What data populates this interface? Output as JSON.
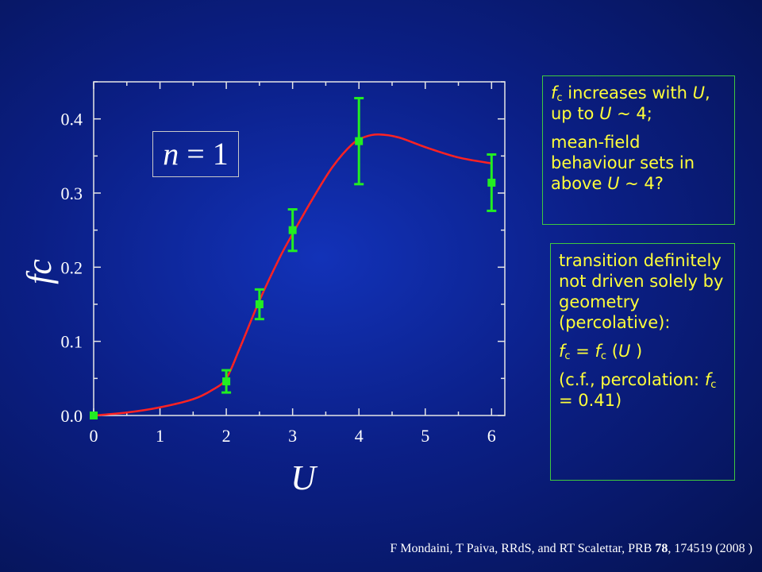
{
  "chart_data": {
    "type": "scatter",
    "xlabel": "U",
    "ylabel": "f",
    "ylabel_sub": "c",
    "xlim": [
      0,
      6.2
    ],
    "ylim": [
      0,
      0.45
    ],
    "xticks": [
      0,
      1,
      2,
      3,
      4,
      5,
      6
    ],
    "yticks": [
      0.0,
      0.1,
      0.2,
      0.3,
      0.4
    ],
    "ytick_labels": [
      "0.0",
      "0.1",
      "0.2",
      "0.3",
      "0.4"
    ],
    "series": [
      {
        "kind": "points",
        "color": "#22ee22",
        "x": [
          0,
          2,
          2.5,
          3,
          4,
          6
        ],
        "y": [
          0.0,
          0.046,
          0.15,
          0.25,
          0.37,
          0.314
        ],
        "err": [
          0,
          0.015,
          0.02,
          0.028,
          0.058,
          0.038
        ]
      },
      {
        "kind": "line",
        "color": "#ff2222",
        "x": [
          0,
          0.5,
          1,
          1.5,
          1.8,
          2,
          2.2,
          2.5,
          2.8,
          3,
          3.3,
          3.6,
          3.9,
          4.1,
          4.3,
          4.6,
          5,
          5.5,
          6
        ],
        "y": [
          0.0,
          0.004,
          0.011,
          0.022,
          0.035,
          0.05,
          0.09,
          0.155,
          0.212,
          0.245,
          0.292,
          0.335,
          0.366,
          0.376,
          0.379,
          0.375,
          0.362,
          0.348,
          0.34
        ]
      }
    ]
  },
  "annotation": {
    "n": "n",
    "eq": "= 1"
  },
  "box1": {
    "l1_f": "f",
    "l1_c": "c",
    "l1_a": " increases with ",
    "l1_U1": "U",
    "l1_b": ", up to ",
    "l1_U2": "U",
    "l1_c2": " ~ 4;",
    "l2_a": "mean-field behaviour sets in above ",
    "l2_U": "U",
    "l2_b": " ~ 4?"
  },
  "box2": {
    "p1": "transition definitely not driven solely by geometry (percolative):",
    "f1": "f",
    "c1": "c",
    "eq": " = ",
    "f2": "f",
    "c2": "c",
    "open": " (",
    "U": "U",
    "close": " )",
    "p3_a": "(c.f., percolation: ",
    "p3_f": "f",
    "p3_c": "c",
    "p3_b": " = 0.41)"
  },
  "citation": {
    "pre": "F Mondaini, T Paiva, RRdS, and RT Scalettar, PRB ",
    "vol": "78",
    "post": ", 174519 (2008 )"
  },
  "colors": {
    "accent_text": "#ffff3a",
    "box_border": "#3fc93f",
    "fit_line": "#ff2222",
    "data_points": "#22ee22"
  }
}
